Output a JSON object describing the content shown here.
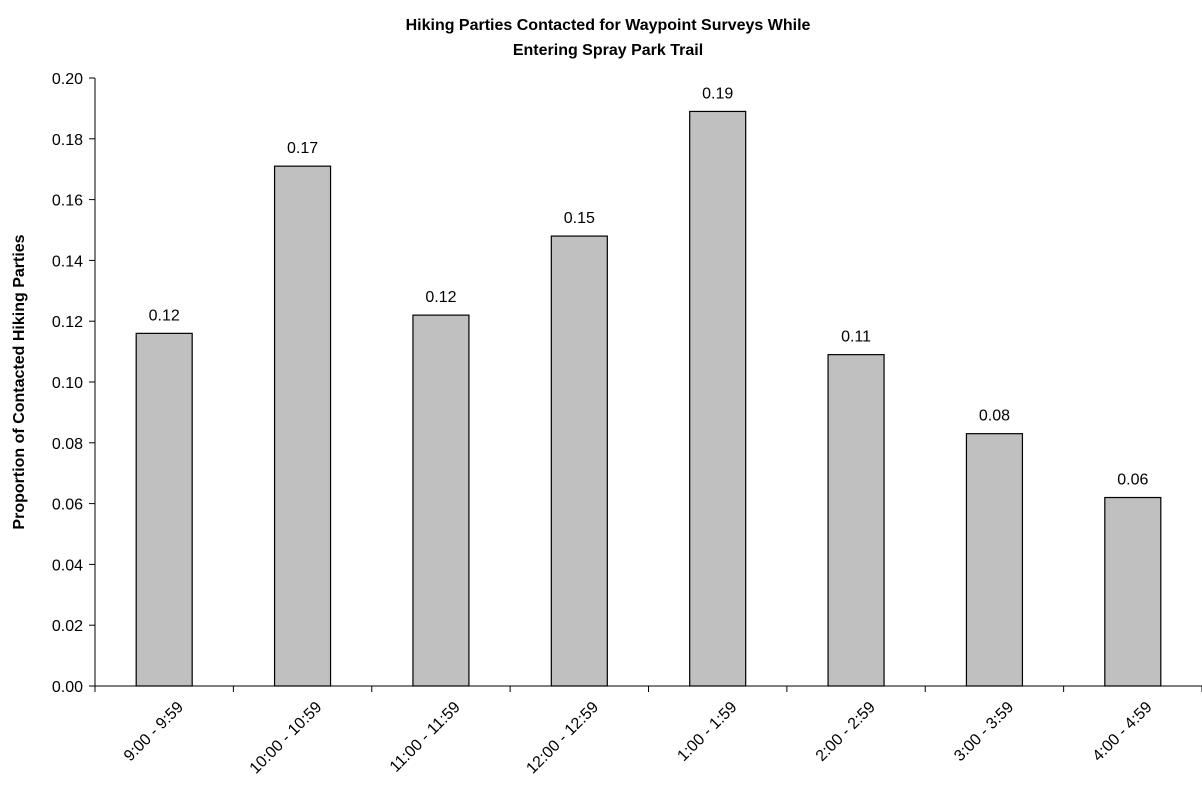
{
  "chart_data": {
    "type": "bar",
    "title_lines": [
      "Hiking Parties Contacted for Waypoint Surveys While",
      "Entering Spray Park Trail"
    ],
    "xlabel": "",
    "ylabel": "Proportion of Contacted Hiking Parties",
    "categories": [
      "9:00 - 9:59",
      "10:00 - 10:59",
      "11:00 - 11:59",
      "12:00 - 12:59",
      "1:00 - 1:59",
      "2:00 - 2:59",
      "3:00 - 3:59",
      "4:00 - 4:59"
    ],
    "values": [
      0.116,
      0.171,
      0.122,
      0.148,
      0.189,
      0.109,
      0.083,
      0.062
    ],
    "data_labels": [
      "0.12",
      "0.17",
      "0.12",
      "0.15",
      "0.19",
      "0.11",
      "0.08",
      "0.06"
    ],
    "ylim": [
      0,
      0.2
    ],
    "yticks": [
      0.0,
      0.02,
      0.04,
      0.06,
      0.08,
      0.1,
      0.12,
      0.14,
      0.16,
      0.18,
      0.2
    ],
    "ytick_labels": [
      "0.00",
      "0.02",
      "0.04",
      "0.06",
      "0.08",
      "0.10",
      "0.12",
      "0.14",
      "0.16",
      "0.18",
      "0.20"
    ],
    "grid": false,
    "legend": "none",
    "bar_color": "#c0c0c0",
    "bar_edge_color": "#000000"
  }
}
